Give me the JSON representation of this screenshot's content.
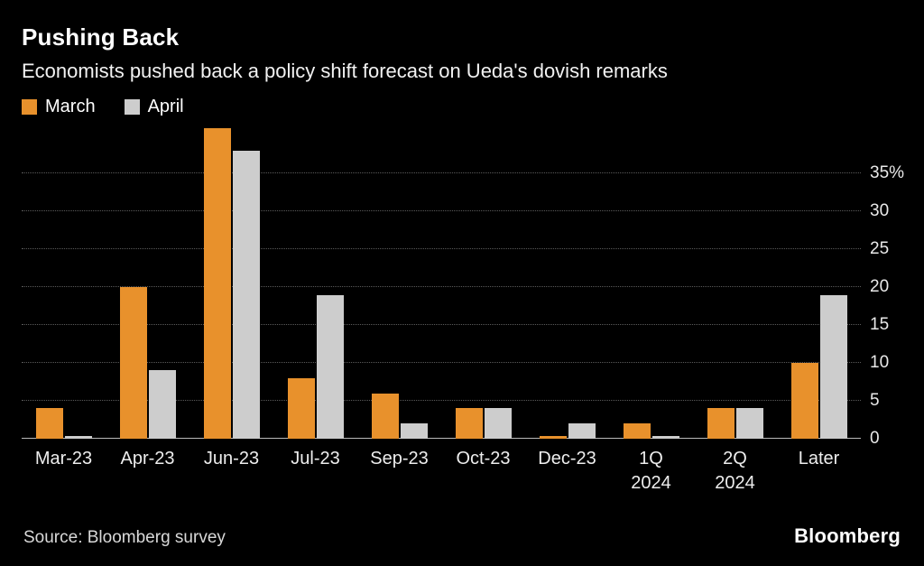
{
  "header": {
    "title": "Pushing Back",
    "subtitle": "Economists pushed back a policy shift forecast on Ueda's dovish remarks"
  },
  "legend": [
    {
      "label": "March",
      "color": "#E8912C"
    },
    {
      "label": "April",
      "color": "#CDCDCD"
    }
  ],
  "chart_data": {
    "type": "bar",
    "title": "Pushing Back",
    "subtitle": "Economists pushed back a policy shift forecast on Ueda's dovish remarks",
    "categories": [
      "Mar-23",
      "Apr-23",
      "Jun-23",
      "Jul-23",
      "Sep-23",
      "Oct-23",
      "Dec-23",
      "1Q 2024",
      "2Q 2024",
      "Later"
    ],
    "series": [
      {
        "name": "March",
        "color": "#E8912C",
        "values": [
          4,
          20,
          41,
          8,
          6,
          4,
          0.4,
          2,
          4,
          10
        ]
      },
      {
        "name": "April",
        "color": "#CDCDCD",
        "values": [
          0.4,
          9,
          38,
          19,
          2,
          4,
          2,
          0.4,
          4,
          19
        ]
      }
    ],
    "yticks": [
      0,
      5,
      10,
      15,
      20,
      25,
      30,
      35
    ],
    "ytick_labels": [
      "0",
      "5",
      "10",
      "15",
      "20",
      "25",
      "30",
      "35%"
    ],
    "ylim": [
      0,
      41.7
    ],
    "ylabel": "",
    "xlabel": "",
    "grid": "dotted-horizontal",
    "legend_position": "top-left",
    "yaxis_side": "right"
  },
  "footer": {
    "source": "Source: Bloomberg survey",
    "logo": "Bloomberg"
  }
}
